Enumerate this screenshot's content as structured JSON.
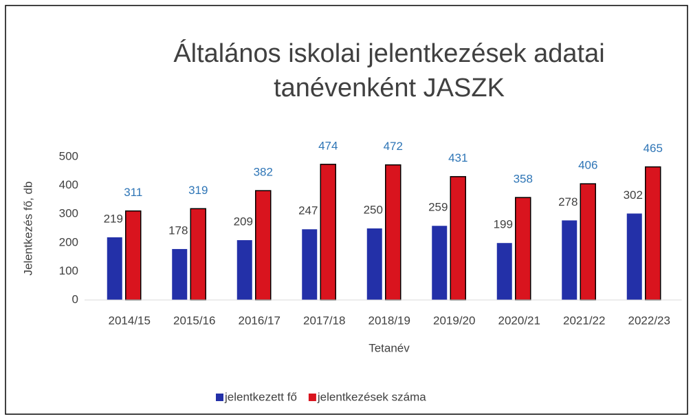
{
  "chart_data": {
    "type": "bar",
    "title": [
      "Általános iskolai jelentkezések adatai",
      "tanévenként JASZK"
    ],
    "x_label": "Tetanév",
    "y_label": "Jelentkezés fő, db",
    "categories": [
      "2014/15",
      "2015/16",
      "2016/17",
      "2017/18",
      "2018/19",
      "2019/20",
      "2020/21",
      "2021/22",
      "2022/23"
    ],
    "series": [
      {
        "name": "jelentkezett fő",
        "color": "#2330a8",
        "label_color": "#404040",
        "values": [
          219,
          178,
          209,
          247,
          250,
          259,
          199,
          278,
          302
        ]
      },
      {
        "name": "jelentkezések száma",
        "color": "#d9141e",
        "label_color": "#2e75b6",
        "values": [
          311,
          319,
          382,
          474,
          472,
          431,
          358,
          406,
          465
        ]
      }
    ],
    "ylim": [
      0,
      500
    ],
    "yticks": [
      0,
      100,
      200,
      300,
      400,
      500
    ],
    "grid": false,
    "legend": "bottom"
  }
}
